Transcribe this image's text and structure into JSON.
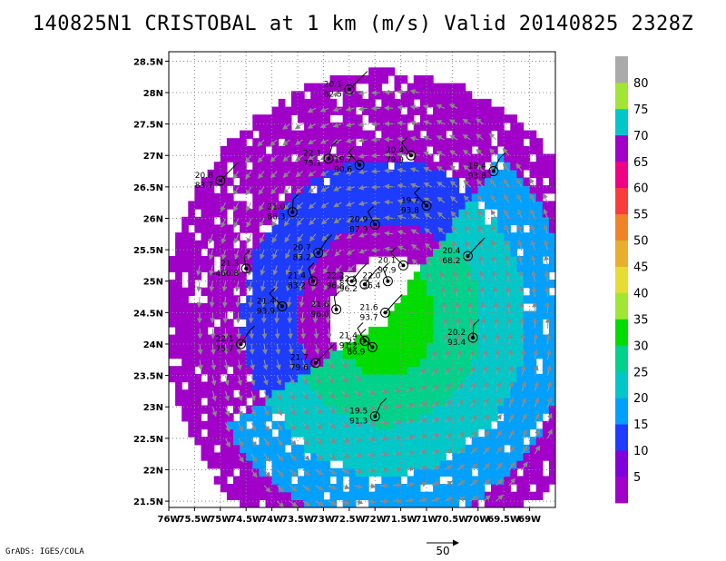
{
  "title": "140825N1 CRISTOBAL at 1 km (m/s) Valid 20140825 2328Z",
  "credit": "GrADS: IGES/COLA",
  "reference_vector_label": "50",
  "chart_data": {
    "type": "heatmap",
    "title": "140825N1 CRISTOBAL at 1 km (m/s) Valid 20140825 2328Z",
    "xlim": [
      -76,
      -68.5
    ],
    "ylim": [
      21.4,
      28.65
    ],
    "grid": true,
    "x_ticks": [
      {
        "value": -76,
        "label": "76W"
      },
      {
        "value": -75.5,
        "label": "75.5W"
      },
      {
        "value": -75,
        "label": "75W"
      },
      {
        "value": -74.5,
        "label": "74.5W"
      },
      {
        "value": -74,
        "label": "74W"
      },
      {
        "value": -73.5,
        "label": "73.5W"
      },
      {
        "value": -73,
        "label": "73W"
      },
      {
        "value": -72.5,
        "label": "72.5W"
      },
      {
        "value": -72,
        "label": "72W"
      },
      {
        "value": -71.5,
        "label": "71.5W"
      },
      {
        "value": -71,
        "label": "71W"
      },
      {
        "value": -70.5,
        "label": "70.5W"
      },
      {
        "value": -70,
        "label": "70W"
      },
      {
        "value": -69.5,
        "label": "69.5W"
      },
      {
        "value": -69,
        "label": "69W"
      }
    ],
    "y_ticks": [
      {
        "value": 21.5,
        "label": "21.5N"
      },
      {
        "value": 22,
        "label": "22N"
      },
      {
        "value": 22.5,
        "label": "22.5N"
      },
      {
        "value": 23,
        "label": "23N"
      },
      {
        "value": 23.5,
        "label": "23.5N"
      },
      {
        "value": 24,
        "label": "24N"
      },
      {
        "value": 24.5,
        "label": "24.5N"
      },
      {
        "value": 25,
        "label": "25N"
      },
      {
        "value": 25.5,
        "label": "25.5N"
      },
      {
        "value": 26,
        "label": "26N"
      },
      {
        "value": 26.5,
        "label": "26.5N"
      },
      {
        "value": 27,
        "label": "27N"
      },
      {
        "value": 27.5,
        "label": "27.5N"
      },
      {
        "value": 28,
        "label": "28N"
      },
      {
        "value": 28.5,
        "label": "28.5N"
      }
    ],
    "colorbar": {
      "labels": [
        "5",
        "10",
        "15",
        "20",
        "25",
        "30",
        "35",
        "40",
        "45",
        "50",
        "55",
        "60",
        "65",
        "70",
        "75",
        "80"
      ],
      "colors": [
        "#a000c8",
        "#8200dc",
        "#1e3cff",
        "#00a0ff",
        "#00c8c8",
        "#00d28c",
        "#00dc00",
        "#a0e632",
        "#e6dc32",
        "#e6af2d",
        "#f08228",
        "#fa3c3c",
        "#f00082",
        "#a000c8",
        "#00c8c8",
        "#a0e632",
        "#aaaaaa"
      ]
    },
    "wind_field": {
      "center": [
        -71.8,
        24.4
      ],
      "rings": [
        {
          "r_inner": 2.55,
          "r_outer": 3.95,
          "color": "#a000c8"
        },
        {
          "r_inner": 1.55,
          "r_outer": 2.55,
          "color": "#1e3cff"
        },
        {
          "r_inner": 1.0,
          "r_outer": 1.55,
          "color": "#a000c8"
        }
      ],
      "southeast_band_colors": [
        "#00a0ff",
        "#00c8c8",
        "#00d28c",
        "#00dc00"
      ]
    },
    "observations": [
      {
        "lon": -72.5,
        "lat": 28.05,
        "line1": "20.1",
        "line2": "82.5"
      },
      {
        "lon": -72.9,
        "lat": 26.95,
        "line1": "22.1",
        "line2": "75.1"
      },
      {
        "lon": -72.3,
        "lat": 26.85,
        "line1": "19.7",
        "line2": "90.6"
      },
      {
        "lon": -71.3,
        "lat": 27.0,
        "line1": "20.4",
        "line2": "79.9"
      },
      {
        "lon": -69.7,
        "lat": 26.75,
        "line1": "19.4",
        "line2": "93.8"
      },
      {
        "lon": -75.0,
        "lat": 26.6,
        "line1": "20.8",
        "line2": "83.7"
      },
      {
        "lon": -73.6,
        "lat": 26.1,
        "line1": "21.0",
        "line2": "86.3"
      },
      {
        "lon": -71.0,
        "lat": 26.2,
        "line1": "19.7",
        "line2": "93.8"
      },
      {
        "lon": -72.0,
        "lat": 25.9,
        "line1": "20.9",
        "line2": "87.9"
      },
      {
        "lon": -73.1,
        "lat": 25.45,
        "line1": "20.7",
        "line2": "83.2"
      },
      {
        "lon": -70.2,
        "lat": 25.4,
        "line1": "20.4",
        "line2": "68.2"
      },
      {
        "lon": -74.5,
        "lat": 25.2,
        "line1": "21.3",
        "line2": "-460.8"
      },
      {
        "lon": -71.45,
        "lat": 25.25,
        "line1": "20.1",
        "line2": "97.9"
      },
      {
        "lon": -73.2,
        "lat": 25.0,
        "line1": "21.4",
        "line2": "83.2"
      },
      {
        "lon": -72.45,
        "lat": 25.0,
        "line1": "22.2",
        "line2": "96.8"
      },
      {
        "lon": -72.2,
        "lat": 24.95,
        "line1": "22.1",
        "line2": "96.2"
      },
      {
        "lon": -71.75,
        "lat": 25.0,
        "line1": "22.0",
        "line2": "96.4"
      },
      {
        "lon": -73.8,
        "lat": 24.6,
        "line1": "21.4",
        "line2": "93.9"
      },
      {
        "lon": -72.75,
        "lat": 24.55,
        "line1": "21.6",
        "line2": "96.0"
      },
      {
        "lon": -71.8,
        "lat": 24.5,
        "line1": "21.6",
        "line2": "93.7"
      },
      {
        "lon": -74.6,
        "lat": 24.0,
        "line1": "22.1",
        "line2": "75.7"
      },
      {
        "lon": -72.2,
        "lat": 24.05,
        "line1": "21.4",
        "line2": "91.2"
      },
      {
        "lon": -72.05,
        "lat": 23.95,
        "line1": "21.0",
        "line2": "86.9"
      },
      {
        "lon": -70.1,
        "lat": 24.1,
        "line1": "20.2",
        "line2": "93.4"
      },
      {
        "lon": -73.15,
        "lat": 23.7,
        "line1": "21.7",
        "line2": "79.6"
      },
      {
        "lon": -72.0,
        "lat": 22.85,
        "line1": "19.5",
        "line2": "91.3"
      }
    ]
  }
}
